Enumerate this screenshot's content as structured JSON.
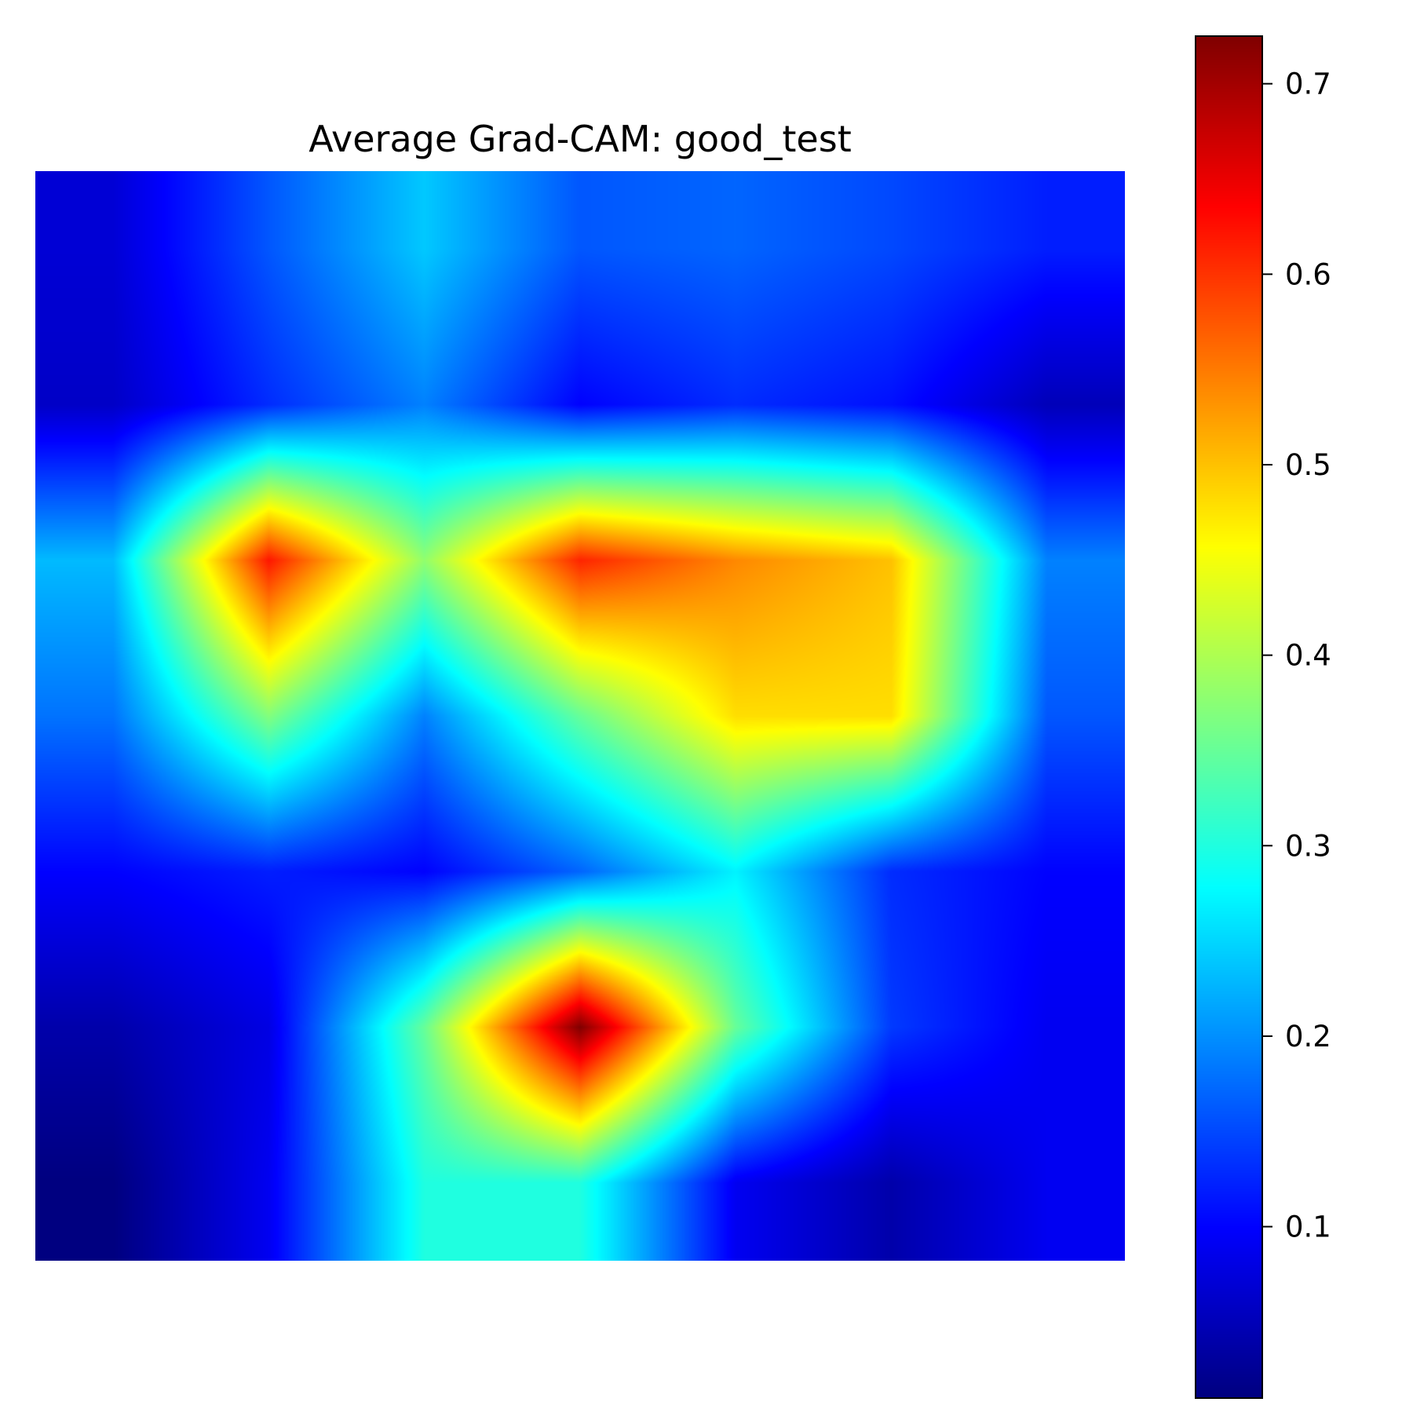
{
  "chart_data": {
    "type": "heatmap",
    "title": "Average Grad-CAM: good_test",
    "colormap": "jet",
    "vmin": 0.01,
    "vmax": 0.725,
    "grid_size": 7,
    "values": [
      [
        0.07,
        0.16,
        0.24,
        0.16,
        0.17,
        0.15,
        0.12
      ],
      [
        0.06,
        0.13,
        0.19,
        0.1,
        0.13,
        0.11,
        0.05
      ],
      [
        0.23,
        0.62,
        0.38,
        0.61,
        0.54,
        0.5,
        0.19
      ],
      [
        0.18,
        0.37,
        0.19,
        0.35,
        0.48,
        0.48,
        0.16
      ],
      [
        0.1,
        0.12,
        0.1,
        0.17,
        0.27,
        0.13,
        0.1
      ],
      [
        0.04,
        0.08,
        0.35,
        0.725,
        0.35,
        0.14,
        0.09
      ],
      [
        0.01,
        0.09,
        0.3,
        0.3,
        0.09,
        0.04,
        0.09
      ]
    ],
    "colorbar_ticks": [
      "0.1",
      "0.2",
      "0.3",
      "0.4",
      "0.5",
      "0.6",
      "0.7"
    ],
    "colorbar_tick_values": [
      0.1,
      0.2,
      0.3,
      0.4,
      0.5,
      0.6,
      0.7
    ],
    "axes": "off"
  }
}
